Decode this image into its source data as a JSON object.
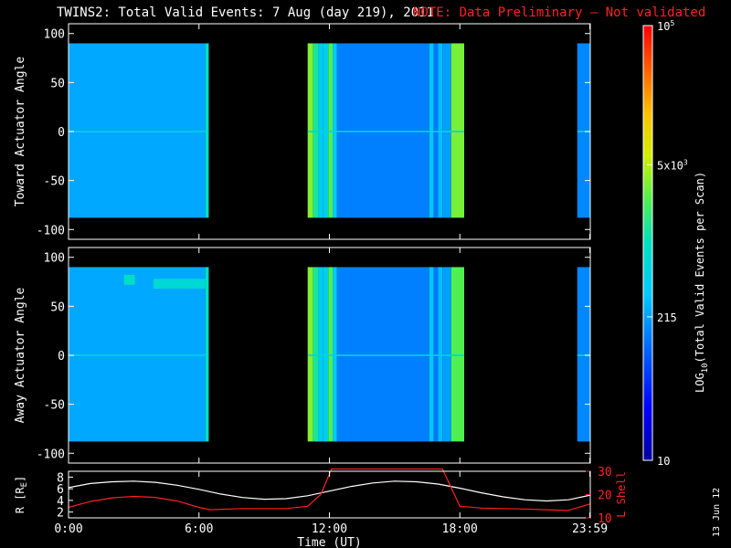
{
  "title": "TWINS2: Total Valid Events:  7 Aug (day 219), 2011",
  "note": "NOTE: Data Preliminary — Not validated",
  "stamp": "13 Jun 12",
  "colors": {
    "note": "#ff2020",
    "background": "#000000",
    "axes": "#ffffff",
    "orbit_r": "#ffffff",
    "orbit_l": "#ff2020"
  },
  "chart_data": [
    {
      "type": "heatmap",
      "ylabel": "Toward Actuator Angle",
      "ylim": [
        -110,
        110
      ],
      "yticks": [
        100,
        50,
        0,
        -50,
        -100
      ],
      "xlim": [
        0,
        24
      ],
      "data_ylim": [
        -88,
        90
      ],
      "segments": [
        {
          "start": 0.0,
          "end": 6.45,
          "bands": [
            {
              "start": 0.0,
              "end": 6.3,
              "level": 0.34
            },
            {
              "start": 6.3,
              "end": 6.45,
              "level": 0.5
            }
          ]
        },
        {
          "start": 11.0,
          "end": 18.2,
          "bands": [
            {
              "start": 11.0,
              "end": 11.25,
              "level": 0.64
            },
            {
              "start": 11.25,
              "end": 11.5,
              "level": 0.53
            },
            {
              "start": 11.5,
              "end": 11.7,
              "level": 0.4
            },
            {
              "start": 11.7,
              "end": 11.95,
              "level": 0.42
            },
            {
              "start": 11.95,
              "end": 12.15,
              "level": 0.6
            },
            {
              "start": 12.15,
              "end": 12.35,
              "level": 0.4
            },
            {
              "start": 12.35,
              "end": 16.6,
              "level": 0.29
            },
            {
              "start": 16.6,
              "end": 16.8,
              "level": 0.38
            },
            {
              "start": 16.8,
              "end": 17.0,
              "level": 0.28
            },
            {
              "start": 17.0,
              "end": 17.2,
              "level": 0.37
            },
            {
              "start": 17.2,
              "end": 17.6,
              "level": 0.33
            },
            {
              "start": 17.6,
              "end": 18.2,
              "level": 0.63
            }
          ]
        },
        {
          "start": 23.4,
          "end": 24.0,
          "bands": [
            {
              "start": 23.4,
              "end": 24.0,
              "level": 0.3
            }
          ]
        }
      ]
    },
    {
      "type": "heatmap",
      "ylabel": "Away Actuator Angle",
      "ylim": [
        -110,
        110
      ],
      "yticks": [
        100,
        50,
        0,
        -50,
        -100
      ],
      "xlim": [
        0,
        24
      ],
      "data_ylim": [
        -88,
        90
      ],
      "segments": [
        {
          "start": 0.0,
          "end": 6.45,
          "bands": [
            {
              "start": 0.0,
              "end": 6.3,
              "level": 0.34
            },
            {
              "start": 6.3,
              "end": 6.45,
              "level": 0.5
            }
          ]
        },
        {
          "start": 11.0,
          "end": 18.2,
          "bands": [
            {
              "start": 11.0,
              "end": 11.25,
              "level": 0.64
            },
            {
              "start": 11.25,
              "end": 11.5,
              "level": 0.53
            },
            {
              "start": 11.5,
              "end": 11.7,
              "level": 0.4
            },
            {
              "start": 11.7,
              "end": 11.95,
              "level": 0.42
            },
            {
              "start": 11.95,
              "end": 12.15,
              "level": 0.6
            },
            {
              "start": 12.15,
              "end": 12.35,
              "level": 0.4
            },
            {
              "start": 12.35,
              "end": 16.6,
              "level": 0.29
            },
            {
              "start": 16.6,
              "end": 16.8,
              "level": 0.38
            },
            {
              "start": 16.8,
              "end": 17.0,
              "level": 0.28
            },
            {
              "start": 17.0,
              "end": 17.2,
              "level": 0.37
            },
            {
              "start": 17.2,
              "end": 17.6,
              "level": 0.33
            },
            {
              "start": 17.6,
              "end": 18.2,
              "level": 0.6
            }
          ]
        },
        {
          "start": 23.4,
          "end": 24.0,
          "bands": [
            {
              "start": 23.4,
              "end": 24.0,
              "level": 0.3
            }
          ]
        }
      ],
      "patches": [
        {
          "start": 2.55,
          "end": 3.05,
          "y1": 72,
          "y2": 82,
          "level": 0.5
        },
        {
          "start": 3.9,
          "end": 6.3,
          "y1": 68,
          "y2": 78,
          "level": 0.46
        }
      ]
    },
    {
      "type": "line",
      "xlabel": "Time (UT)",
      "xlim": [
        0,
        24
      ],
      "xticks": [
        {
          "v": 0,
          "label": "0:00"
        },
        {
          "v": 6,
          "label": "6:00"
        },
        {
          "v": 12,
          "label": "12:00"
        },
        {
          "v": 18,
          "label": "18:00"
        },
        {
          "v": 23.98,
          "label": "23:59"
        }
      ],
      "ylabel_left": "R [R",
      "ylabel_left_sub": "E",
      "ylabel_left_close": "]",
      "ylim_left": [
        1,
        9
      ],
      "yticks_left": [
        8,
        6,
        4,
        2
      ],
      "ylabel_right": "L Shell",
      "ylim_right": [
        10,
        30
      ],
      "yticks_right": [
        30,
        20,
        10
      ],
      "series": [
        {
          "axis": "left",
          "color": "#ffffff",
          "x": [
            0,
            1,
            2,
            3,
            4,
            5,
            6,
            7,
            8,
            9,
            10,
            11,
            12,
            13,
            14,
            15,
            16,
            17,
            18,
            19,
            20,
            21,
            22,
            23,
            24
          ],
          "y": [
            6.2,
            6.9,
            7.2,
            7.3,
            7.1,
            6.6,
            5.9,
            5.1,
            4.5,
            4.2,
            4.3,
            4.8,
            5.6,
            6.4,
            7.0,
            7.3,
            7.2,
            6.8,
            6.1,
            5.3,
            4.6,
            4.1,
            3.9,
            4.1,
            4.9
          ]
        },
        {
          "axis": "right",
          "color": "#ff2020",
          "x": [
            0,
            1,
            2,
            3,
            4,
            5,
            6,
            6.5,
            8,
            9,
            10,
            11,
            11.6,
            12.1,
            17.2,
            18,
            19,
            20,
            21,
            22,
            23,
            24
          ],
          "y": [
            14.5,
            17,
            18.6,
            19.2,
            18.8,
            17.2,
            14.5,
            13.5,
            14,
            14,
            14,
            15,
            20,
            31,
            31,
            15,
            14.2,
            14,
            13.8,
            13.5,
            13.2,
            16
          ]
        }
      ]
    },
    {
      "type": "colorbar",
      "label": "LOG",
      "label_sub": "10",
      "label_rest": "(Total Valid  Events per Scan)",
      "ticks": [
        {
          "level": 1,
          "label": "10",
          "sup": "5"
        },
        {
          "level": 0.68,
          "label": "5x10",
          "sup": "3"
        },
        {
          "level": 0.33,
          "label": "215",
          "sup": ""
        },
        {
          "level": 0,
          "label": "10",
          "sup": ""
        }
      ]
    }
  ]
}
